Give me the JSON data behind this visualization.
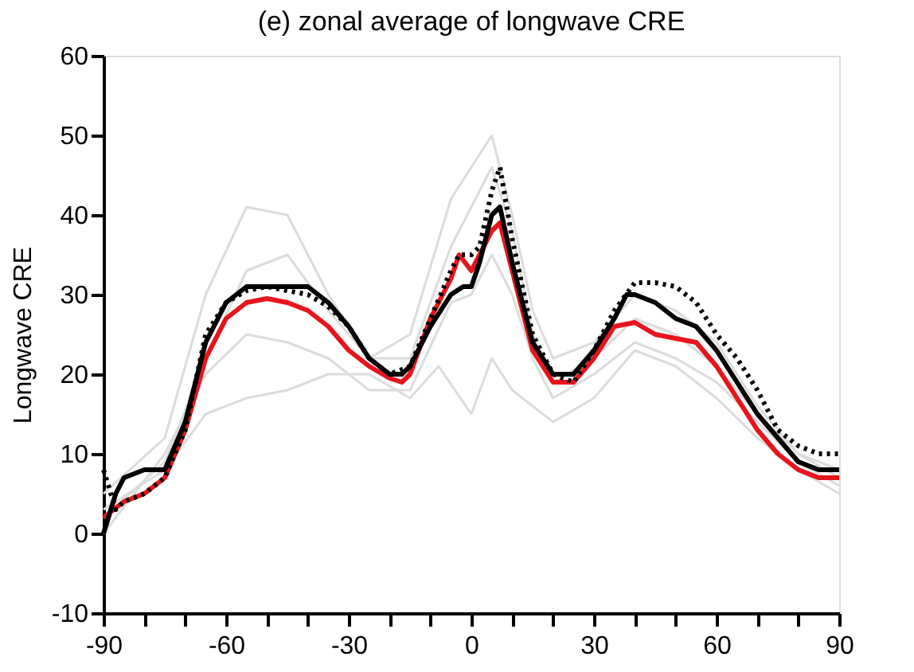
{
  "chart_data": {
    "type": "line",
    "title": "(e) zonal average of longwave CRE",
    "ylabel": "Longwave CRE",
    "xlim": [
      -90,
      90
    ],
    "ylim": [
      -10,
      60
    ],
    "xticks": [
      -90,
      {
        "value": -80,
        "label": null
      },
      {
        "value": -70,
        "label": null
      },
      -60,
      {
        "value": -50,
        "label": null
      },
      {
        "value": -40,
        "label": null
      },
      -30,
      {
        "value": -20,
        "label": null
      },
      {
        "value": -10,
        "label": null
      },
      0,
      {
        "value": 10,
        "label": null
      },
      {
        "value": 20,
        "label": null
      },
      30,
      {
        "value": 40,
        "label": null
      },
      {
        "value": 50,
        "label": null
      },
      60,
      {
        "value": 70,
        "label": null
      },
      {
        "value": 80,
        "label": null
      },
      90
    ],
    "yticks": [
      -10,
      0,
      10,
      20,
      30,
      40,
      50,
      60
    ],
    "grid": false,
    "marker": "none",
    "series": [
      {
        "color": "#dcdcdc",
        "line_style": "solid",
        "x": [
          -90,
          -75,
          -65,
          -55,
          -45,
          -35,
          -25,
          -15,
          -5,
          5,
          10,
          15,
          20,
          30,
          40,
          50,
          60,
          70,
          80,
          90
        ],
        "values": [
          5,
          12,
          30,
          41,
          40,
          30,
          22,
          25,
          42,
          50,
          40,
          28,
          22,
          24,
          30,
          28,
          24,
          16,
          10,
          8
        ]
      },
      {
        "color": "#dcdcdc",
        "line_style": "solid",
        "x": [
          -90,
          -75,
          -65,
          -55,
          -45,
          -35,
          -25,
          -15,
          -8,
          0,
          5,
          10,
          20,
          30,
          40,
          50,
          60,
          70,
          80,
          90
        ],
        "values": [
          3,
          8,
          15,
          17,
          18,
          20,
          20,
          17,
          21,
          15,
          22,
          18,
          14,
          17,
          23,
          21,
          17,
          12,
          8,
          5
        ]
      },
      {
        "color": "#dcdcdc",
        "line_style": "solid",
        "x": [
          -90,
          -75,
          -65,
          -55,
          -45,
          -35,
          -25,
          -15,
          -5,
          0,
          5,
          10,
          15,
          20,
          30,
          40,
          50,
          60,
          70,
          80,
          90
        ],
        "values": [
          0,
          10,
          20,
          25,
          24,
          22,
          18,
          18,
          29,
          30,
          35,
          30,
          22,
          17,
          20,
          24,
          22,
          19,
          14,
          9,
          6
        ]
      },
      {
        "color": "#dcdcdc",
        "line_style": "solid",
        "x": [
          -90,
          -75,
          -65,
          -55,
          -45,
          -35,
          -25,
          -15,
          -5,
          5,
          10,
          15,
          20,
          30,
          40,
          50,
          60,
          70,
          80,
          90
        ],
        "values": [
          2,
          9,
          22,
          33,
          35,
          28,
          22,
          22,
          36,
          46,
          38,
          25,
          19,
          22,
          27,
          25,
          21,
          15,
          10,
          7
        ]
      },
      {
        "color": "#e8141c",
        "line_style": "solid",
        "x": [
          -90,
          -85,
          -80,
          -75,
          -70,
          -65,
          -60,
          -55,
          -50,
          -45,
          -40,
          -35,
          -30,
          -25,
          -20,
          -17,
          -15,
          -10,
          -5,
          -3,
          0,
          2,
          5,
          7,
          10,
          15,
          20,
          25,
          30,
          35,
          40,
          45,
          50,
          55,
          60,
          65,
          70,
          75,
          80,
          85,
          90
        ],
        "values": [
          2,
          4,
          5,
          7,
          13,
          22,
          27,
          29,
          29.5,
          29,
          28,
          26,
          23,
          21,
          19.5,
          19,
          20,
          27,
          32,
          35,
          33,
          35,
          38,
          39,
          33,
          23,
          19,
          19,
          22,
          26,
          26.5,
          25,
          24.5,
          24,
          21,
          17,
          13,
          10,
          8,
          7,
          7
        ]
      },
      {
        "color": "#000000",
        "line_style": "dotted",
        "x": [
          -90,
          -87,
          -85,
          -80,
          -75,
          -70,
          -65,
          -60,
          -55,
          -50,
          -45,
          -40,
          -35,
          -30,
          -25,
          -20,
          -15,
          -10,
          -5,
          -3,
          0,
          2,
          5,
          7,
          10,
          15,
          20,
          25,
          30,
          35,
          40,
          45,
          50,
          55,
          60,
          65,
          70,
          75,
          80,
          85,
          90
        ],
        "values": [
          8,
          3,
          4,
          5,
          7,
          13,
          25,
          29,
          30.5,
          31,
          30.5,
          30,
          28.5,
          26,
          22,
          20,
          21,
          27,
          33,
          35,
          35,
          36,
          43,
          46,
          37,
          25,
          20,
          19,
          23,
          28,
          31.5,
          31.5,
          31,
          29,
          25,
          22,
          18,
          13,
          11,
          10,
          10
        ]
      },
      {
        "color": "#000000",
        "line_style": "solid",
        "x": [
          -90,
          -87,
          -85,
          -80,
          -75,
          -70,
          -65,
          -60,
          -55,
          -50,
          -45,
          -40,
          -35,
          -30,
          -25,
          -20,
          -17,
          -15,
          -10,
          -5,
          -2,
          0,
          2,
          5,
          7,
          10,
          15,
          20,
          25,
          30,
          35,
          38,
          40,
          45,
          50,
          55,
          60,
          65,
          70,
          75,
          80,
          85,
          90
        ],
        "values": [
          0,
          5,
          7,
          8,
          8,
          14,
          24,
          29,
          31,
          31,
          31,
          31,
          29,
          26,
          22,
          20,
          20,
          21,
          26,
          30,
          31,
          31,
          34,
          40,
          41,
          34,
          24,
          20,
          20,
          23,
          27,
          30,
          30,
          29,
          27,
          26,
          23,
          19,
          15,
          12,
          9,
          8,
          8
        ]
      }
    ]
  }
}
